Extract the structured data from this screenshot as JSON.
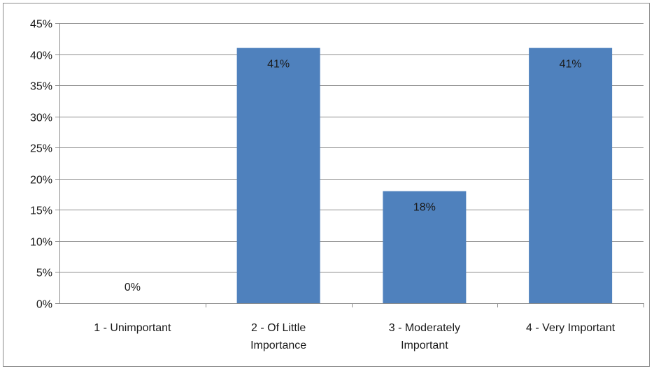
{
  "chart_data": {
    "type": "bar",
    "title": "",
    "xlabel": "",
    "ylabel": "",
    "categories": [
      [
        "1 - Unimportant"
      ],
      [
        "2 - Of Little",
        "Importance"
      ],
      [
        "3 - Moderately",
        "Important"
      ],
      [
        "4 - Very Important"
      ]
    ],
    "values": [
      0,
      41,
      18,
      41
    ],
    "data_labels": [
      "0%",
      "41%",
      "18%",
      "41%"
    ],
    "ylim": [
      0,
      45
    ],
    "y_ticks": [
      0,
      5,
      10,
      15,
      20,
      25,
      30,
      35,
      40,
      45
    ],
    "y_tick_labels": [
      "0%",
      "5%",
      "10%",
      "15%",
      "20%",
      "25%",
      "30%",
      "35%",
      "40%",
      "45%"
    ],
    "grid": true,
    "legend": "none",
    "colors": {
      "bar": "#4f81bd",
      "grid": "#8c8c8c",
      "axis": "#8c8c8c",
      "text": "#1a1a1a"
    }
  }
}
